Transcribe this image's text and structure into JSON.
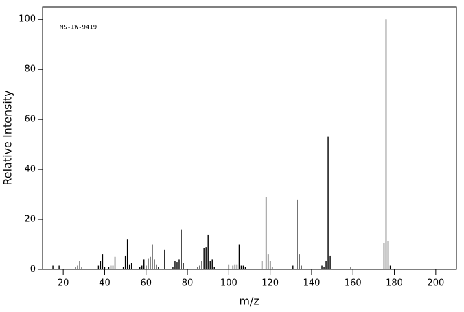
{
  "chart_data": {
    "type": "bar",
    "annotation": "MS-IW-9419",
    "xlabel": "m/z",
    "ylabel": "Relative Intensity",
    "x": [
      15,
      18,
      26,
      27,
      28,
      29,
      37,
      38,
      39,
      40,
      42,
      43,
      44,
      45,
      49,
      50,
      51,
      52,
      53,
      57,
      58,
      59,
      60,
      61,
      62,
      63,
      64,
      65,
      66,
      69,
      73,
      74,
      75,
      76,
      77,
      78,
      85,
      86,
      87,
      88,
      89,
      90,
      91,
      92,
      93,
      100,
      102,
      103,
      104,
      105,
      106,
      107,
      108,
      116,
      118,
      119,
      120,
      121,
      131,
      133,
      134,
      135,
      145,
      146,
      147,
      148,
      149,
      159,
      175,
      176,
      177,
      178
    ],
    "values": [
      1.5,
      1.5,
      1,
      1.5,
      3.5,
      1,
      1.5,
      3.5,
      6,
      1,
      1,
      1.5,
      1.5,
      5,
      1,
      5.5,
      12,
      2,
      2.5,
      1,
      1.5,
      4,
      1.5,
      4.5,
      5,
      10,
      4,
      2,
      1,
      8,
      1,
      3.5,
      3,
      4,
      16,
      2.5,
      1,
      1.5,
      3.5,
      8.5,
      9,
      14,
      3.5,
      4,
      1,
      2,
      1.5,
      2,
      2,
      10,
      1.5,
      1.5,
      1,
      3.5,
      29,
      6,
      3.5,
      1,
      1.5,
      28,
      6,
      1.5,
      1.5,
      1,
      3.5,
      53,
      5.5,
      1,
      10.5,
      100,
      11.5,
      1.5
    ],
    "color": "#000000",
    "xlim": [
      10,
      210
    ],
    "xticks": [
      20,
      40,
      60,
      80,
      100,
      120,
      140,
      160,
      180,
      200
    ],
    "ylim": [
      0,
      105
    ],
    "yticks": [
      0,
      20,
      40,
      60,
      80,
      100
    ]
  }
}
